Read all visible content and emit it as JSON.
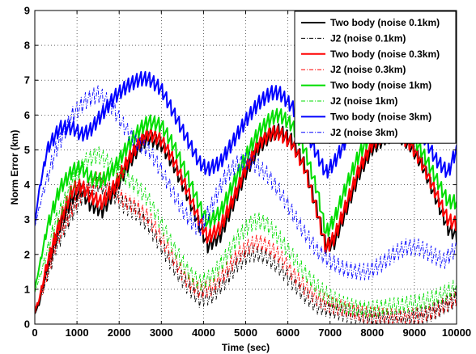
{
  "chart_data": {
    "type": "line",
    "title": "",
    "xlabel": "Time (sec)",
    "ylabel": "Norm Error (km)",
    "xlim": [
      0,
      10000
    ],
    "ylim": [
      0,
      9
    ],
    "xticks": [
      "0",
      "1000",
      "2000",
      "3000",
      "4000",
      "5000",
      "6000",
      "7000",
      "8000",
      "9000",
      "10000"
    ],
    "yticks": [
      "0",
      "1",
      "2",
      "3",
      "4",
      "5",
      "6",
      "7",
      "8",
      "9"
    ],
    "grid": true,
    "legend_position": "top-right",
    "series": [
      {
        "name": "Two body (noise 0.1km)",
        "color": "#000000",
        "dash": "solid",
        "ripple": 0.25,
        "x": [
          0,
          100,
          300,
          600,
          900,
          1100,
          1300,
          1600,
          1900,
          2200,
          2500,
          2700,
          3000,
          3300,
          3600,
          3900,
          4100,
          4400,
          4700,
          5000,
          5300,
          5600,
          5800,
          6100,
          6400,
          6700,
          6900,
          7100,
          7400,
          7700,
          8000,
          8300,
          8600,
          8900,
          9200,
          9500,
          9800,
          10000
        ],
        "y": [
          0.3,
          0.6,
          1.7,
          2.9,
          3.7,
          3.9,
          3.5,
          3.3,
          3.9,
          4.6,
          5.2,
          5.4,
          5.2,
          4.6,
          3.8,
          2.9,
          2.3,
          2.6,
          3.5,
          4.4,
          5.1,
          5.5,
          5.6,
          5.3,
          4.6,
          3.3,
          2.3,
          2.4,
          3.4,
          4.4,
          5.1,
          5.4,
          5.5,
          5.2,
          4.6,
          3.7,
          2.8,
          2.6
        ]
      },
      {
        "name": "J2 (noise 0.1km)",
        "color": "#000000",
        "dash": "dashdot",
        "ripple": 0.3,
        "x": [
          0,
          200,
          500,
          900,
          1200,
          1500,
          1800,
          2100,
          2400,
          2700,
          3000,
          3300,
          3600,
          3900,
          4200,
          4500,
          4800,
          5100,
          5300,
          5500,
          5800,
          6100,
          6400,
          6700,
          7000,
          7300,
          7600,
          7900,
          8200,
          8500,
          8800,
          9100,
          9400,
          9700,
          10000
        ],
        "y": [
          0.3,
          1.0,
          2.2,
          3.2,
          3.8,
          4.0,
          3.8,
          3.4,
          3.2,
          2.8,
          2.2,
          1.6,
          1.1,
          0.7,
          0.8,
          1.2,
          1.7,
          2.0,
          2.0,
          1.9,
          1.6,
          1.2,
          0.8,
          0.5,
          0.4,
          0.3,
          0.2,
          0.15,
          0.1,
          0.1,
          0.1,
          0.2,
          0.3,
          0.5,
          0.7
        ]
      },
      {
        "name": "Two body (noise 0.3km)",
        "color": "#ff0000",
        "dash": "solid",
        "ripple": 0.25,
        "x": [
          0,
          100,
          300,
          600,
          900,
          1100,
          1300,
          1600,
          1900,
          2200,
          2500,
          2700,
          3000,
          3300,
          3600,
          3900,
          4100,
          4400,
          4700,
          5000,
          5300,
          5600,
          5800,
          6100,
          6400,
          6700,
          6900,
          7100,
          7400,
          7700,
          8000,
          8300,
          8600,
          8900,
          9200,
          9500,
          9800,
          10000
        ],
        "y": [
          0.4,
          0.7,
          1.8,
          3.0,
          3.9,
          4.0,
          3.7,
          3.5,
          4.0,
          4.7,
          5.3,
          5.5,
          5.3,
          4.7,
          3.9,
          3.0,
          2.5,
          2.8,
          3.6,
          4.5,
          5.2,
          5.5,
          5.5,
          5.2,
          4.5,
          3.2,
          2.2,
          2.5,
          3.5,
          4.5,
          5.2,
          5.5,
          5.5,
          5.2,
          4.6,
          3.8,
          3.0,
          2.9
        ]
      },
      {
        "name": "J2 (noise 0.3km)",
        "color": "#ff0000",
        "dash": "dashdot",
        "ripple": 0.3,
        "x": [
          0,
          200,
          500,
          900,
          1200,
          1500,
          1800,
          2100,
          2400,
          2700,
          3000,
          3300,
          3600,
          3900,
          4200,
          4500,
          4800,
          5100,
          5300,
          5500,
          5800,
          6100,
          6400,
          6700,
          7000,
          7300,
          7600,
          7900,
          8200,
          8500,
          8800,
          9100,
          9400,
          9700,
          10000
        ],
        "y": [
          0.3,
          1.0,
          2.3,
          3.3,
          3.9,
          4.1,
          3.9,
          3.5,
          3.3,
          3.0,
          2.4,
          1.8,
          1.2,
          0.9,
          1.0,
          1.4,
          1.9,
          2.2,
          2.3,
          2.2,
          1.9,
          1.4,
          1.0,
          0.7,
          0.5,
          0.4,
          0.3,
          0.2,
          0.2,
          0.15,
          0.15,
          0.2,
          0.3,
          0.5,
          0.7
        ]
      },
      {
        "name": "Two body (noise 1km)",
        "color": "#00dd00",
        "dash": "solid",
        "ripple": 0.25,
        "x": [
          0,
          100,
          300,
          600,
          900,
          1100,
          1300,
          1600,
          1900,
          2200,
          2500,
          2700,
          3000,
          3300,
          3600,
          3900,
          4100,
          4400,
          4700,
          5000,
          5300,
          5600,
          5800,
          6100,
          6400,
          6700,
          6900,
          7100,
          7400,
          7700,
          8000,
          8300,
          8600,
          8900,
          9200,
          9500,
          9800,
          10000
        ],
        "y": [
          1.0,
          1.6,
          2.8,
          3.9,
          4.4,
          4.5,
          4.2,
          4.1,
          4.5,
          5.1,
          5.6,
          5.8,
          5.7,
          5.1,
          4.3,
          3.4,
          2.9,
          3.2,
          4.0,
          4.8,
          5.5,
          5.9,
          6.0,
          5.7,
          5.0,
          3.8,
          2.6,
          3.0,
          4.0,
          4.9,
          5.5,
          5.8,
          5.8,
          5.5,
          4.9,
          4.2,
          3.5,
          3.5
        ]
      },
      {
        "name": "J2 (noise 1km)",
        "color": "#00dd00",
        "dash": "dashdot",
        "ripple": 0.3,
        "x": [
          0,
          200,
          500,
          900,
          1200,
          1500,
          1800,
          2100,
          2400,
          2700,
          3000,
          3300,
          3600,
          3900,
          4200,
          4500,
          4800,
          5100,
          5300,
          5500,
          5800,
          6100,
          6400,
          6700,
          7000,
          7300,
          7600,
          7900,
          8200,
          8500,
          8800,
          9100,
          9400,
          9700,
          10000
        ],
        "y": [
          0.9,
          1.7,
          3.0,
          4.1,
          4.7,
          4.9,
          4.6,
          4.3,
          4.0,
          3.6,
          2.9,
          2.2,
          1.6,
          1.2,
          1.4,
          1.9,
          2.5,
          2.9,
          3.0,
          2.9,
          2.5,
          2.0,
          1.5,
          1.1,
          0.8,
          0.6,
          0.5,
          0.45,
          0.5,
          0.55,
          0.6,
          0.65,
          0.75,
          0.9,
          1.1
        ]
      },
      {
        "name": "Two body (noise 3km)",
        "color": "#0000ff",
        "dash": "solid",
        "ripple": 0.25,
        "x": [
          0,
          100,
          300,
          600,
          900,
          1100,
          1300,
          1600,
          1900,
          2200,
          2500,
          2700,
          3000,
          3300,
          3600,
          3900,
          4100,
          4400,
          4700,
          5000,
          5300,
          5600,
          5800,
          6100,
          6400,
          6700,
          6900,
          7100,
          7400,
          7700,
          8000,
          8300,
          8600,
          8900,
          9200,
          9500,
          9800,
          10000
        ],
        "y": [
          2.9,
          3.8,
          5.0,
          5.6,
          5.6,
          5.4,
          5.5,
          6.0,
          6.5,
          6.8,
          7.0,
          7.0,
          6.7,
          6.0,
          5.3,
          4.6,
          4.4,
          4.6,
          5.2,
          5.8,
          6.3,
          6.6,
          6.6,
          6.2,
          5.6,
          4.8,
          4.3,
          4.6,
          5.3,
          6.0,
          6.5,
          6.7,
          6.6,
          6.1,
          5.4,
          4.7,
          4.3,
          5.0
        ]
      },
      {
        "name": "J2 (noise 3km)",
        "color": "#0000ff",
        "dash": "dashdot",
        "ripple": 0.3,
        "x": [
          0,
          200,
          500,
          900,
          1200,
          1500,
          1800,
          2100,
          2400,
          2700,
          3000,
          3300,
          3600,
          3900,
          4200,
          4500,
          4800,
          5100,
          5300,
          5500,
          5800,
          6100,
          6400,
          6700,
          7000,
          7300,
          7600,
          7900,
          8200,
          8500,
          8800,
          9100,
          9400,
          9700,
          10000
        ],
        "y": [
          2.8,
          3.8,
          5.0,
          6.0,
          6.4,
          6.6,
          6.3,
          5.7,
          5.2,
          5.0,
          4.4,
          3.7,
          3.1,
          2.7,
          3.4,
          4.2,
          4.6,
          4.7,
          4.5,
          4.3,
          3.8,
          3.2,
          2.6,
          2.1,
          1.8,
          1.6,
          1.5,
          1.5,
          1.7,
          2.0,
          2.2,
          2.2,
          2.0,
          1.8,
          2.2
        ]
      }
    ]
  }
}
